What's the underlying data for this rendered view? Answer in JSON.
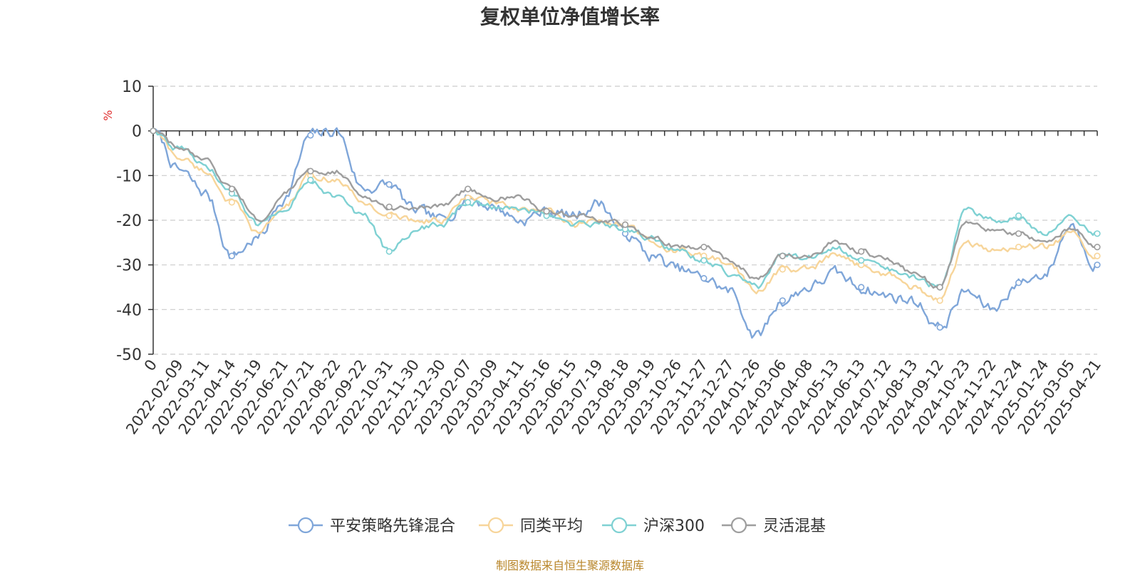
{
  "chart_data": {
    "type": "line",
    "title": "复权单位净值增长率",
    "ylabel": "%",
    "ylim": [
      -50,
      10
    ],
    "yticks": [
      10,
      0,
      -10,
      -20,
      -30,
      -40,
      -50
    ],
    "grid": true,
    "legend_position": "bottom",
    "x_tick_labels": [
      "0",
      "2022-02-09",
      "2022-03-11",
      "2022-04-14",
      "2022-05-19",
      "2022-06-21",
      "2022-07-21",
      "2022-08-22",
      "2022-09-22",
      "2022-10-31",
      "2022-11-30",
      "2022-12-30",
      "2023-02-07",
      "2023-03-09",
      "2023-04-11",
      "2023-05-16",
      "2023-06-15",
      "2023-07-19",
      "2023-08-18",
      "2023-09-19",
      "2023-10-26",
      "2023-11-27",
      "2023-12-27",
      "2024-01-26",
      "2024-03-06",
      "2024-04-08",
      "2024-05-13",
      "2024-06-13",
      "2024-07-12",
      "2024-08-13",
      "2024-09-12",
      "2024-10-23",
      "2024-11-22",
      "2024-12-24",
      "2025-01-24",
      "2025-03-05",
      "2025-04-21"
    ],
    "series": [
      {
        "name": "平安策略先锋混合",
        "color": "#7fa6d9",
        "values": [
          0,
          -9,
          -14,
          -28,
          -24,
          -15,
          -1,
          0,
          -13,
          -12,
          -18,
          -20,
          -15,
          -17,
          -20,
          -18,
          -19,
          -16,
          -23,
          -28,
          -31,
          -33,
          -36,
          -46,
          -38,
          -35,
          -32,
          -35,
          -37,
          -38,
          -44,
          -36,
          -40,
          -34,
          -32,
          -21,
          -30
        ]
      },
      {
        "name": "同类平均",
        "color": "#f7d59a",
        "values": [
          0,
          -6,
          -9,
          -16,
          -23,
          -17,
          -10,
          -11,
          -16,
          -19,
          -20,
          -20,
          -15,
          -16,
          -18,
          -18,
          -21,
          -20,
          -21,
          -25,
          -27,
          -28,
          -30,
          -36,
          -31,
          -31,
          -28,
          -30,
          -32,
          -35,
          -38,
          -25,
          -27,
          -26,
          -26,
          -23,
          -28
        ]
      },
      {
        "name": "沪深300",
        "color": "#7fd1d3",
        "values": [
          0,
          -4,
          -8,
          -14,
          -21,
          -17,
          -11,
          -15,
          -19,
          -27,
          -22,
          -21,
          -16,
          -17,
          -17,
          -19,
          -21,
          -21,
          -22,
          -24,
          -27,
          -29,
          -32,
          -35,
          -28,
          -28,
          -26,
          -29,
          -31,
          -33,
          -35,
          -18,
          -20,
          -19,
          -23,
          -19,
          -23
        ]
      },
      {
        "name": "灵活混基",
        "color": "#9e9e9e",
        "values": [
          0,
          -4,
          -7,
          -13,
          -20,
          -14,
          -9,
          -9,
          -15,
          -17,
          -17,
          -17,
          -13,
          -15,
          -15,
          -18,
          -19,
          -20,
          -21,
          -24,
          -26,
          -26,
          -29,
          -33,
          -28,
          -28,
          -25,
          -27,
          -29,
          -32,
          -35,
          -20,
          -22,
          -23,
          -25,
          -22,
          -26
        ]
      }
    ]
  },
  "source_note": "制图数据来自恒生聚源数据库"
}
